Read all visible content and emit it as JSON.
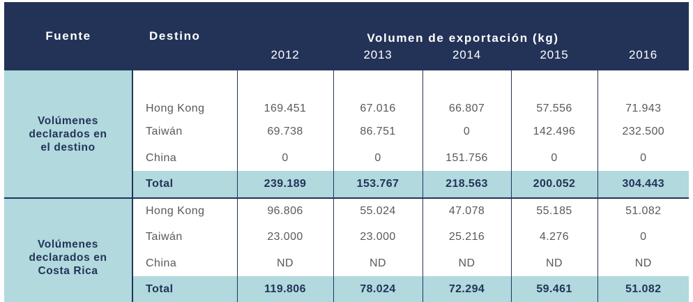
{
  "header": {
    "fuente": "Fuente",
    "destino": "Destino",
    "volumen": "Volumen de exportación (kg)",
    "years": [
      "2012",
      "2013",
      "2014",
      "2015",
      "2016"
    ]
  },
  "groups": [
    {
      "source_lines": [
        "Volúmenes",
        "declarados en",
        "el destino"
      ],
      "rows": [
        {
          "dest": "Hong Kong",
          "values": [
            "169.451",
            "67.016",
            "66.807",
            "57.556",
            "71.943"
          ]
        },
        {
          "dest": "Taiwán",
          "values": [
            "69.738",
            "86.751",
            "0",
            "142.496",
            "232.500"
          ]
        },
        {
          "dest": "China",
          "values": [
            "0",
            "0",
            "151.756",
            "0",
            "0"
          ]
        }
      ],
      "total": {
        "label": "Total",
        "values": [
          "239.189",
          "153.767",
          "218.563",
          "200.052",
          "304.443"
        ]
      }
    },
    {
      "source_lines": [
        "Volúmenes",
        "declarados en",
        "Costa Rica"
      ],
      "rows": [
        {
          "dest": "Hong Kong",
          "values": [
            "96.806",
            "55.024",
            "47.078",
            "55.185",
            "51.082"
          ]
        },
        {
          "dest": "Taiwán",
          "values": [
            "23.000",
            "23.000",
            "25.216",
            "4.276",
            "0"
          ]
        },
        {
          "dest": "China",
          "values": [
            "ND",
            "ND",
            "ND",
            "ND",
            "ND"
          ]
        }
      ],
      "total": {
        "label": "Total",
        "values": [
          "119.806",
          "78.024",
          "72.294",
          "59.461",
          "51.082"
        ]
      }
    }
  ]
}
